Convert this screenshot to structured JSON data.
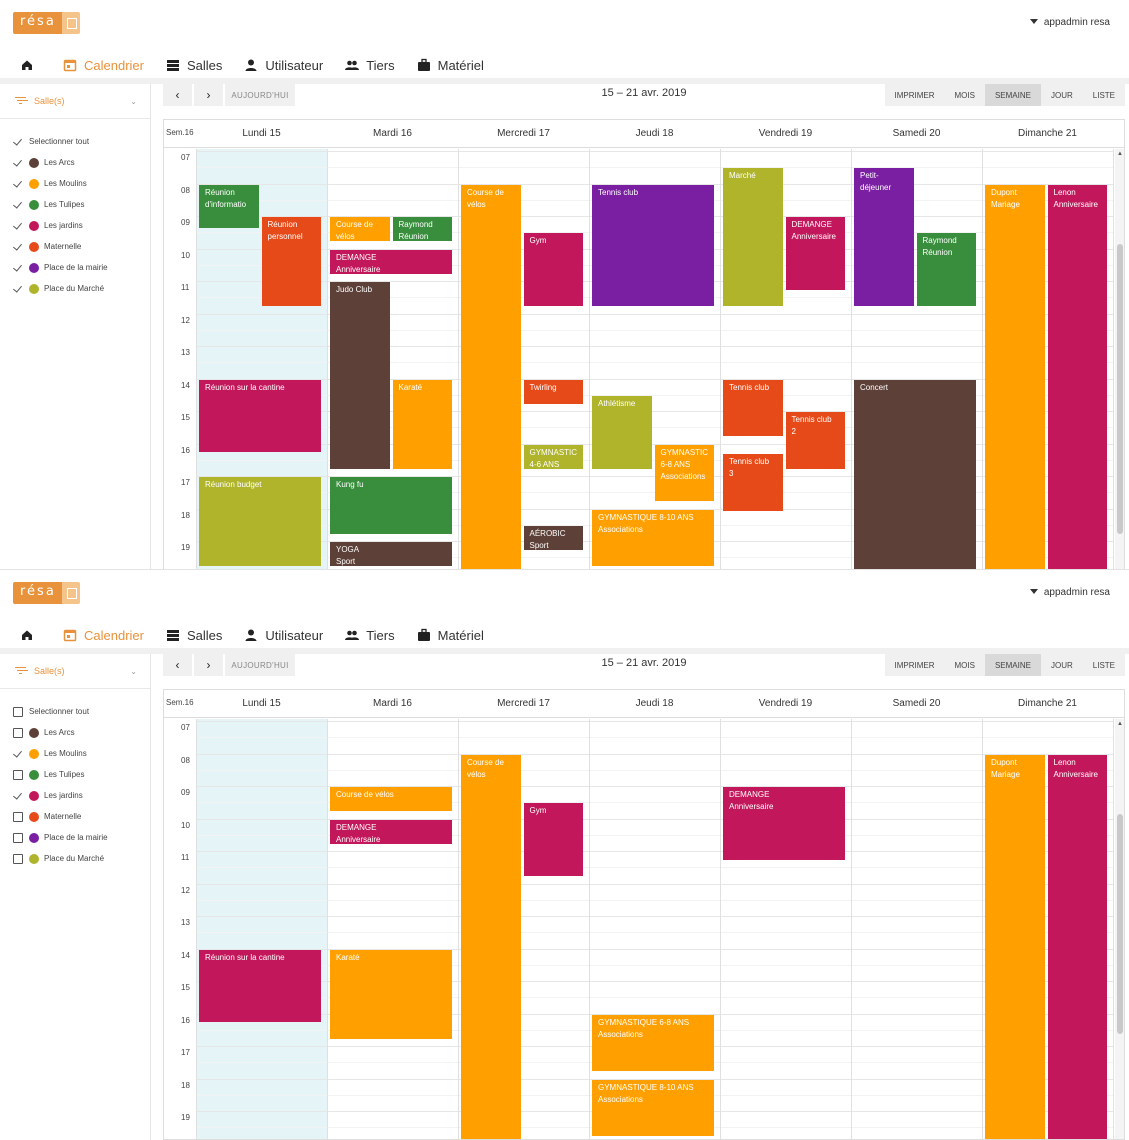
{
  "colors": {
    "accent": "#e8923b",
    "today_bg": "#e4f4f7",
    "rooms": {
      "Les Arcs": "#5d4037",
      "Les Moulins": "#ffa000",
      "Les Tulipes": "#388e3c",
      "Les jardins": "#c2185b",
      "Maternelle": "#e64a19",
      "Place de la mairie": "#7b1fa2",
      "Place du Marché": "#afb42b"
    }
  },
  "logo": {
    "text": "résa",
    "icon": "calendar-icon"
  },
  "user_menu": {
    "label": "appadmin resa",
    "icon": "caret-down-icon"
  },
  "nav": [
    {
      "label": "",
      "icon": "home-icon"
    },
    {
      "label": "Calendrier",
      "icon": "calendar-icon",
      "active": true
    },
    {
      "label": "Salles",
      "icon": "building-icon"
    },
    {
      "label": "Utilisateur",
      "icon": "user-icon"
    },
    {
      "label": "Tiers",
      "icon": "users-icon"
    },
    {
      "label": "Matériel",
      "icon": "briefcase-icon"
    }
  ],
  "filter": {
    "label": "Salle(s)",
    "icon": "filter-icon"
  },
  "select_all_label": "Selectionner tout",
  "room_names": [
    "Les Arcs",
    "Les Moulins",
    "Les Tulipes",
    "Les jardins",
    "Maternelle",
    "Place de la mairie",
    "Place du Marché"
  ],
  "toolbar": {
    "prev": "‹",
    "next": "›",
    "today": "AUJOURD'HUI",
    "range": "15 – 21 avr. 2019",
    "views": [
      "IMPRIMER",
      "MOIS",
      "SEMAINE",
      "JOUR",
      "LISTE"
    ],
    "selected_view": "SEMAINE"
  },
  "week_label": "Sem.16",
  "days": [
    "Lundi 15",
    "Mardi 16",
    "Mercredi 17",
    "Jeudi 18",
    "Vendredi 19",
    "Samedi 20",
    "Dimanche 21"
  ],
  "hours": [
    "07",
    "08",
    "09",
    "10",
    "11",
    "12",
    "13",
    "14",
    "15",
    "16",
    "17",
    "18",
    "19"
  ],
  "panels": [
    {
      "checked_rooms": [
        "Selectionner tout",
        "Les Arcs",
        "Les Moulins",
        "Les Tulipes",
        "Les jardins",
        "Maternelle",
        "Place de la mairie",
        "Place du Marché"
      ],
      "events": [
        {
          "title": "Réunion\nd'informatio",
          "day": 0,
          "start": 8.0,
          "end": 9.4,
          "col": 0,
          "cols": 2,
          "room": "Les Tulipes"
        },
        {
          "title": "Réunion\npersonnel",
          "day": 0,
          "start": 9.0,
          "end": 11.8,
          "col": 1,
          "cols": 2,
          "room": "Maternelle"
        },
        {
          "title": "Réunion sur la cantine",
          "day": 0,
          "start": 14.0,
          "end": 16.3,
          "col": 0,
          "cols": 1,
          "room": "Les jardins"
        },
        {
          "title": "Réunion budget",
          "day": 0,
          "start": 17.0,
          "end": 19.8,
          "col": 0,
          "cols": 1,
          "room": "Place du Marché"
        },
        {
          "title": "Course de\nvélos",
          "day": 1,
          "start": 9.0,
          "end": 9.8,
          "col": 0,
          "cols": 2,
          "room": "Les Moulins"
        },
        {
          "title": "Raymond\nRéunion",
          "day": 1,
          "start": 9.0,
          "end": 9.8,
          "col": 1,
          "cols": 2,
          "room": "Les Tulipes"
        },
        {
          "title": "DEMANGE\nAnniversaire",
          "day": 1,
          "start": 10.0,
          "end": 10.8,
          "col": 0,
          "cols": 1,
          "room": "Les jardins"
        },
        {
          "title": "Judo Club",
          "day": 1,
          "start": 11.0,
          "end": 16.8,
          "col": 0,
          "cols": 2,
          "room": "Les Arcs"
        },
        {
          "title": "Karaté",
          "day": 1,
          "start": 14.0,
          "end": 16.8,
          "col": 1,
          "cols": 2,
          "room": "Les Moulins"
        },
        {
          "title": "Kung fu",
          "day": 1,
          "start": 17.0,
          "end": 18.8,
          "col": 0,
          "cols": 1,
          "room": "Les Tulipes"
        },
        {
          "title": "YOGA\nSport",
          "day": 1,
          "start": 19.0,
          "end": 19.8,
          "col": 0,
          "cols": 1,
          "room": "Les Arcs"
        },
        {
          "title": "Course de\nvélos",
          "day": 2,
          "start": 8.0,
          "end": 20.0,
          "col": 0,
          "cols": 2,
          "room": "Les Moulins"
        },
        {
          "title": "Gym",
          "day": 2,
          "start": 9.5,
          "end": 11.8,
          "col": 1,
          "cols": 2,
          "room": "Les jardins"
        },
        {
          "title": "Twirling",
          "day": 2,
          "start": 14.0,
          "end": 14.8,
          "col": 1,
          "cols": 2,
          "room": "Maternelle"
        },
        {
          "title": "GYMNASTIC\n4-6 ANS",
          "day": 2,
          "start": 16.0,
          "end": 16.8,
          "col": 1,
          "cols": 2,
          "room": "Place du Marché"
        },
        {
          "title": "AÉROBIC\nSport",
          "day": 2,
          "start": 18.5,
          "end": 19.3,
          "col": 1,
          "cols": 2,
          "room": "Les Arcs"
        },
        {
          "title": "Tennis club",
          "day": 3,
          "start": 8.0,
          "end": 11.8,
          "col": 0,
          "cols": 1,
          "room": "Place de la mairie"
        },
        {
          "title": "Athlétisme",
          "day": 3,
          "start": 14.5,
          "end": 16.8,
          "col": 0,
          "cols": 2,
          "room": "Place du Marché"
        },
        {
          "title": "GYMNASTIC\n6-8 ANS\nAssociations",
          "day": 3,
          "start": 16.0,
          "end": 17.8,
          "col": 1,
          "cols": 2,
          "room": "Les Moulins"
        },
        {
          "title": "GYMNASTIQUE 8-10 ANS\nAssociations",
          "day": 3,
          "start": 18.0,
          "end": 19.8,
          "col": 0,
          "cols": 1,
          "room": "Les Moulins"
        },
        {
          "title": "Marché",
          "day": 4,
          "start": 7.5,
          "end": 11.8,
          "col": 0,
          "cols": 2,
          "room": "Place du Marché"
        },
        {
          "title": "DEMANGE\nAnniversaire",
          "day": 4,
          "start": 9.0,
          "end": 11.3,
          "col": 1,
          "cols": 2,
          "room": "Les jardins"
        },
        {
          "title": "Tennis club",
          "day": 4,
          "start": 14.0,
          "end": 15.8,
          "col": 0,
          "cols": 2,
          "room": "Maternelle"
        },
        {
          "title": "Tennis club\n2",
          "day": 4,
          "start": 15.0,
          "end": 16.8,
          "col": 1,
          "cols": 2,
          "room": "Maternelle"
        },
        {
          "title": "Tennis club\n3",
          "day": 4,
          "start": 16.3,
          "end": 18.1,
          "col": 0,
          "cols": 2,
          "room": "Maternelle"
        },
        {
          "title": "Petit-\ndéjeuner",
          "day": 5,
          "start": 7.5,
          "end": 11.8,
          "col": 0,
          "cols": 2,
          "room": "Place de la mairie"
        },
        {
          "title": "Raymond\nRéunion",
          "day": 5,
          "start": 9.5,
          "end": 11.8,
          "col": 1,
          "cols": 2,
          "room": "Les Tulipes"
        },
        {
          "title": "Concert",
          "day": 5,
          "start": 14.0,
          "end": 20.0,
          "col": 0,
          "cols": 1,
          "room": "Les Arcs"
        },
        {
          "title": "Dupont\nMariage",
          "day": 6,
          "start": 8.0,
          "end": 20.0,
          "col": 0,
          "cols": 2,
          "room": "Les Moulins"
        },
        {
          "title": "Lenon\nAnniversaire",
          "day": 6,
          "start": 8.0,
          "end": 20.0,
          "col": 1,
          "cols": 2,
          "room": "Les jardins"
        }
      ]
    },
    {
      "checked_rooms": [
        "Les Moulins",
        "Les jardins"
      ],
      "events": [
        {
          "title": "Réunion sur la cantine",
          "day": 0,
          "start": 14.0,
          "end": 16.3,
          "col": 0,
          "cols": 1,
          "room": "Les jardins"
        },
        {
          "title": "Course de vélos",
          "day": 1,
          "start": 9.0,
          "end": 9.8,
          "col": 0,
          "cols": 1,
          "room": "Les Moulins"
        },
        {
          "title": "DEMANGE\nAnniversaire",
          "day": 1,
          "start": 10.0,
          "end": 10.8,
          "col": 0,
          "cols": 1,
          "room": "Les jardins"
        },
        {
          "title": "Karaté",
          "day": 1,
          "start": 14.0,
          "end": 16.8,
          "col": 0,
          "cols": 1,
          "room": "Les Moulins"
        },
        {
          "title": "Course de\nvélos",
          "day": 2,
          "start": 8.0,
          "end": 20.0,
          "col": 0,
          "cols": 2,
          "room": "Les Moulins"
        },
        {
          "title": "Gym",
          "day": 2,
          "start": 9.5,
          "end": 11.8,
          "col": 1,
          "cols": 2,
          "room": "Les jardins"
        },
        {
          "title": "GYMNASTIQUE 6-8 ANS\nAssociations",
          "day": 3,
          "start": 16.0,
          "end": 17.8,
          "col": 0,
          "cols": 1,
          "room": "Les Moulins"
        },
        {
          "title": "GYMNASTIQUE 8-10 ANS\nAssociations",
          "day": 3,
          "start": 18.0,
          "end": 19.8,
          "col": 0,
          "cols": 1,
          "room": "Les Moulins"
        },
        {
          "title": "DEMANGE\nAnniversaire",
          "day": 4,
          "start": 9.0,
          "end": 11.3,
          "col": 0,
          "cols": 1,
          "room": "Les jardins"
        },
        {
          "title": "Dupont\nMariage",
          "day": 6,
          "start": 8.0,
          "end": 20.0,
          "col": 0,
          "cols": 2,
          "room": "Les Moulins"
        },
        {
          "title": "Lenon\nAnniversaire",
          "day": 6,
          "start": 8.0,
          "end": 20.0,
          "col": 1,
          "cols": 2,
          "room": "Les jardins"
        }
      ]
    }
  ]
}
